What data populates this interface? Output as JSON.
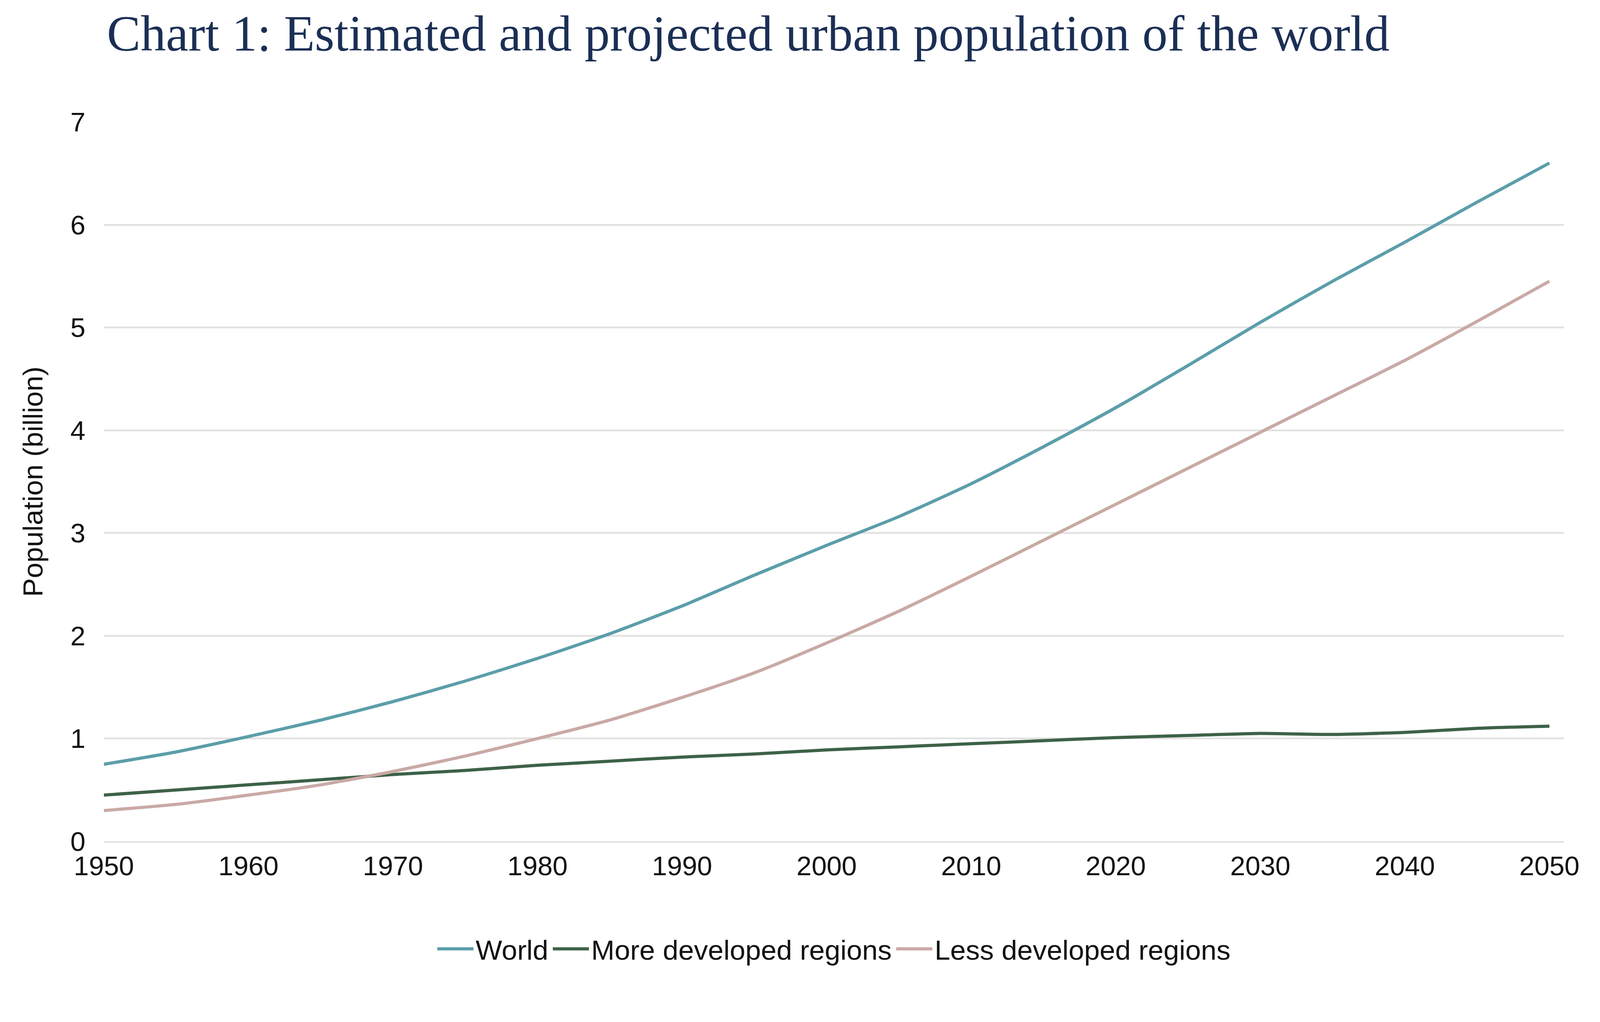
{
  "chart_data": {
    "type": "line",
    "title": "Chart 1: Estimated and projected urban population of the world",
    "y_label": "Population (billion)",
    "x": [
      1950,
      1955,
      1960,
      1965,
      1970,
      1975,
      1980,
      1985,
      1990,
      1995,
      2000,
      2005,
      2010,
      2015,
      2020,
      2025,
      2030,
      2035,
      2040,
      2045,
      2050
    ],
    "series": [
      {
        "name": "World",
        "color": "#5b9ea9",
        "values": [
          0.75,
          0.87,
          1.02,
          1.18,
          1.36,
          1.56,
          1.78,
          2.02,
          2.29,
          2.59,
          2.88,
          3.16,
          3.48,
          3.84,
          4.22,
          4.63,
          5.05,
          5.45,
          5.83,
          6.22,
          6.6
        ]
      },
      {
        "name": "More developed regions",
        "color": "#3d6148",
        "values": [
          0.45,
          0.5,
          0.55,
          0.6,
          0.65,
          0.69,
          0.74,
          0.78,
          0.82,
          0.85,
          0.89,
          0.92,
          0.95,
          0.98,
          1.01,
          1.03,
          1.05,
          1.04,
          1.06,
          1.1,
          1.12
        ]
      },
      {
        "name": "Less developed regions",
        "color": "#c9a9a6",
        "values": [
          0.3,
          0.36,
          0.45,
          0.55,
          0.68,
          0.83,
          1.0,
          1.18,
          1.4,
          1.64,
          1.93,
          2.24,
          2.58,
          2.93,
          3.28,
          3.63,
          3.98,
          4.33,
          4.68,
          5.06,
          5.45
        ]
      }
    ],
    "xlim": [
      1950,
      2051
    ],
    "xticks": [
      1950,
      1960,
      1970,
      1980,
      1990,
      2000,
      2010,
      2020,
      2030,
      2040,
      2050
    ],
    "ylim": [
      0,
      7
    ],
    "yticks": [
      0,
      1,
      2,
      3,
      4,
      5,
      6,
      7
    ],
    "grid": true,
    "legend": "bottom"
  }
}
